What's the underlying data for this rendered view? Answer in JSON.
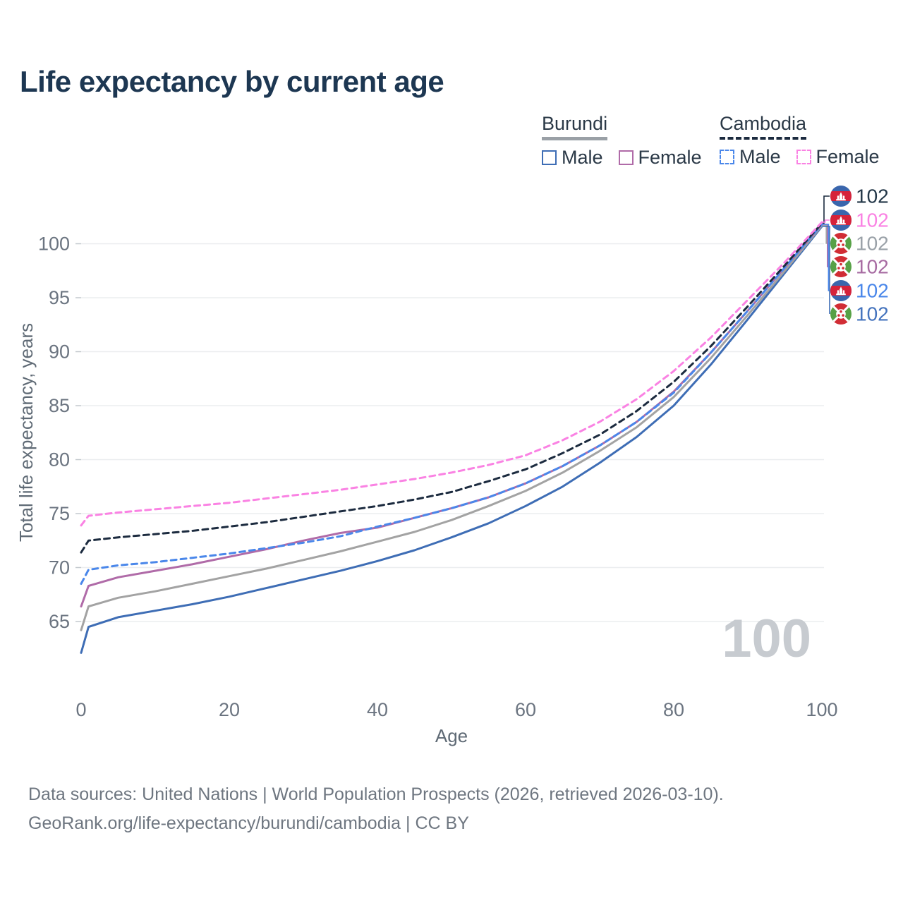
{
  "title": "Life expectancy by current age",
  "legend": {
    "groups": [
      {
        "name": "Burundi",
        "line_style": "solid",
        "underline_color": "#9aa0a6",
        "items": [
          {
            "label": "Male",
            "color": "#3e6db5",
            "dash": "solid"
          },
          {
            "label": "Female",
            "color": "#b06ba8",
            "dash": "solid"
          }
        ]
      },
      {
        "name": "Cambodia",
        "line_style": "dashed",
        "underline_color": "#1c2b3f",
        "items": [
          {
            "label": "Male",
            "color": "#4a87ea",
            "dash": "dashed"
          },
          {
            "label": "Female",
            "color": "#fa82e3",
            "dash": "dashed"
          }
        ]
      }
    ]
  },
  "watermark_age": "100",
  "footer": {
    "line1": "Data sources: United Nations | World Population Prospects (2026, retrieved 2026-03-10).",
    "line2": "GeoRank.org/life-expectancy/burundi/cambodia | CC BY"
  },
  "chart_data": {
    "type": "line",
    "title": "Life expectancy by current age",
    "xlabel": "Age",
    "ylabel": "Total life expectancy, years",
    "xlim": [
      0,
      100
    ],
    "ylim": [
      61.5,
      102.5
    ],
    "xticks": [
      0,
      20,
      40,
      60,
      80,
      100
    ],
    "yticks": [
      65,
      70,
      75,
      80,
      85,
      90,
      95,
      100
    ],
    "grid": "horizontal",
    "legend_position": "top-right",
    "x": [
      0,
      1,
      5,
      10,
      15,
      20,
      25,
      30,
      35,
      40,
      45,
      50,
      55,
      60,
      65,
      70,
      75,
      80,
      85,
      90,
      95,
      100
    ],
    "series": [
      {
        "id": "burundi-male",
        "name": "Burundi Male",
        "color": "#3e6db5",
        "dash": "solid",
        "flag": "burundi",
        "values": [
          62.1,
          64.5,
          65.4,
          66.0,
          66.6,
          67.3,
          68.1,
          68.9,
          69.7,
          70.6,
          71.6,
          72.8,
          74.1,
          75.7,
          77.5,
          79.7,
          82.1,
          85.0,
          88.8,
          93.0,
          97.3,
          101.6
        ]
      },
      {
        "id": "burundi-all",
        "name": "Burundi Both sexes",
        "color": "#a3a3a3",
        "dash": "solid",
        "flag": "burundi",
        "values": [
          64.2,
          66.4,
          67.2,
          67.8,
          68.5,
          69.2,
          69.9,
          70.7,
          71.5,
          72.4,
          73.3,
          74.4,
          75.7,
          77.1,
          78.8,
          80.8,
          83.0,
          85.8,
          89.4,
          93.4,
          97.5,
          101.7
        ]
      },
      {
        "id": "burundi-female",
        "name": "Burundi Female",
        "color": "#b06ba8",
        "dash": "solid",
        "flag": "burundi",
        "values": [
          66.4,
          68.3,
          69.1,
          69.7,
          70.3,
          71.0,
          71.7,
          72.5,
          73.2,
          73.7,
          74.6,
          75.5,
          76.5,
          77.8,
          79.4,
          81.3,
          83.5,
          86.3,
          89.9,
          93.8,
          97.8,
          101.8
        ]
      },
      {
        "id": "cambodia-male",
        "name": "Cambodia Male",
        "color": "#4a87ea",
        "dash": "dashed",
        "flag": "cambodia",
        "values": [
          68.5,
          69.8,
          70.2,
          70.5,
          70.9,
          71.3,
          71.8,
          72.3,
          72.9,
          73.8,
          74.6,
          75.5,
          76.5,
          77.8,
          79.4,
          81.3,
          83.5,
          86.2,
          89.9,
          93.8,
          97.8,
          101.8
        ]
      },
      {
        "id": "cambodia-all",
        "name": "Cambodia Both sexes",
        "color": "#1c2b3f",
        "dash": "dashed",
        "flag": "cambodia",
        "values": [
          71.4,
          72.5,
          72.8,
          73.1,
          73.4,
          73.8,
          74.2,
          74.7,
          75.2,
          75.7,
          76.3,
          77.0,
          78.0,
          79.1,
          80.6,
          82.3,
          84.5,
          87.2,
          90.5,
          94.2,
          98.0,
          101.9
        ]
      },
      {
        "id": "cambodia-female",
        "name": "Cambodia Female",
        "color": "#fa82e3",
        "dash": "dashed",
        "flag": "cambodia",
        "values": [
          73.9,
          74.8,
          75.1,
          75.4,
          75.7,
          76.0,
          76.4,
          76.8,
          77.2,
          77.7,
          78.2,
          78.8,
          79.5,
          80.4,
          81.8,
          83.5,
          85.6,
          88.2,
          91.3,
          94.8,
          98.3,
          102.0
        ]
      }
    ],
    "end_labels": [
      {
        "series": "cambodia-all",
        "flag": "cambodia",
        "text": "102",
        "color": "#233748"
      },
      {
        "series": "cambodia-female",
        "flag": "cambodia",
        "text": "102",
        "color": "#fa82e3"
      },
      {
        "series": "burundi-all",
        "flag": "burundi",
        "text": "102",
        "color": "#9aa1a8"
      },
      {
        "series": "burundi-female",
        "flag": "burundi",
        "text": "102",
        "color": "#a76ba2"
      },
      {
        "series": "cambodia-male",
        "flag": "cambodia",
        "text": "102",
        "color": "#4a87ea"
      },
      {
        "series": "burundi-male",
        "flag": "burundi",
        "text": "102",
        "color": "#4473bd"
      }
    ]
  }
}
